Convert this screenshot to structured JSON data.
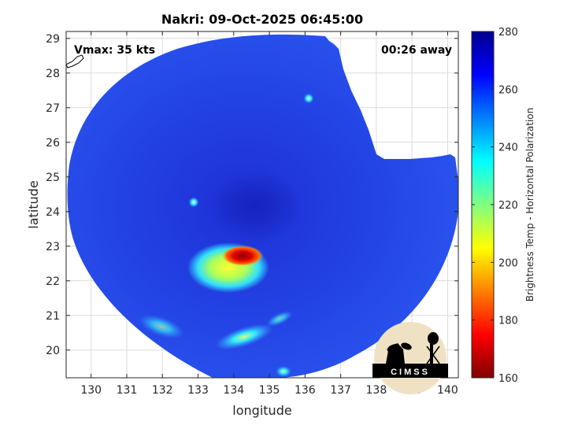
{
  "header": {
    "title": "Nakri: 09-Oct-2025 06:45:00"
  },
  "annotations": {
    "vmax": "Vmax: 35 kts",
    "away": "00:26 away"
  },
  "map": {
    "xlabel": "longitude",
    "ylabel": "latitude",
    "xlim": [
      129.3,
      140.3
    ],
    "ylim": [
      19.2,
      29.2
    ],
    "xticks": [
      130,
      131,
      132,
      133,
      134,
      135,
      136,
      137,
      138,
      139,
      140
    ],
    "yticks": [
      20,
      21,
      22,
      23,
      24,
      25,
      26,
      27,
      28,
      29
    ],
    "grid": true,
    "swath_center": {
      "lon": 134.4,
      "lat": 24.0
    },
    "features": [
      {
        "name": "intense-convection-core",
        "lon": 134.3,
        "lat": 22.75,
        "brightness_temp_k": 170
      },
      {
        "name": "convective-area",
        "lon": 133.9,
        "lat": 22.6,
        "brightness_temp_k": 205
      },
      {
        "name": "convective-band-south",
        "lon": 134.5,
        "lat": 20.3,
        "brightness_temp_k": 228
      },
      {
        "name": "convective-cell-north",
        "lon": 136.1,
        "lat": 27.25,
        "brightness_temp_k": 232
      },
      {
        "name": "convective-cell-west",
        "lon": 132.8,
        "lat": 24.15,
        "brightness_temp_k": 232
      }
    ]
  },
  "colorbar": {
    "label": "Brightness Temp - Horizontal Polarization",
    "min": 160,
    "max": 280,
    "ticks": [
      160,
      180,
      200,
      220,
      240,
      260,
      280
    ],
    "colors": [
      "#7f0000",
      "#ff0000",
      "#ff8000",
      "#ffff00",
      "#80ff80",
      "#00ffff",
      "#0080ff",
      "#0000ff",
      "#00008f"
    ]
  },
  "logo": {
    "text": "CIMSS"
  }
}
